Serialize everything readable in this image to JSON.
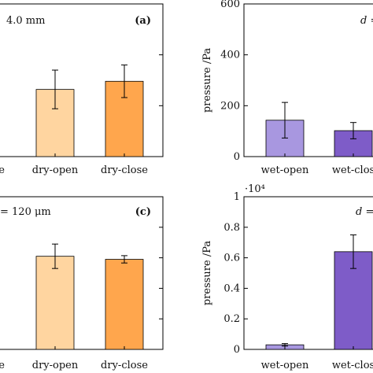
{
  "chart_data": [
    {
      "type": "bar",
      "panel": "top-left",
      "panel_label": "(a)",
      "annotation": "4.0 mm",
      "ylabel": "",
      "categories": [
        "…e",
        "dry-open",
        "dry-close"
      ],
      "values": [
        null,
        66,
        74
      ],
      "errors": [
        null,
        19,
        16
      ],
      "ylim": [
        0,
        150
      ],
      "yticks": [
        0,
        50,
        100,
        150
      ],
      "ytick_labels": [],
      "colors": [
        "#ffd5a0",
        "#ffd5a0",
        "#ffa64d"
      ]
    },
    {
      "type": "bar",
      "panel": "top-right",
      "panel_label": "",
      "annotation": "d =",
      "ylabel": "pressure /Pa",
      "categories": [
        "wet-open",
        "wet-clos…"
      ],
      "values": [
        143,
        102
      ],
      "errors": [
        70,
        32
      ],
      "ylim": [
        0,
        600
      ],
      "yticks": [
        0,
        200,
        400,
        600
      ],
      "ytick_labels": [
        "0",
        "200",
        "400",
        "600"
      ],
      "colors": [
        "#a897e0",
        "#7e5cc8"
      ]
    },
    {
      "type": "bar",
      "panel": "bottom-left",
      "panel_label": "(c)",
      "annotation": "= 120 μm",
      "ylabel": "",
      "categories": [
        "…e",
        "dry-open",
        "dry-close"
      ],
      "values": [
        null,
        3.05,
        2.95
      ],
      "errors": [
        null,
        0.4,
        0.12
      ],
      "ylim": [
        0,
        5
      ],
      "yticks": [
        0,
        1,
        2,
        3,
        4,
        5
      ],
      "ytick_labels": [],
      "colors": [
        "#ffd5a0",
        "#ffd5a0",
        "#ffa64d"
      ]
    },
    {
      "type": "bar",
      "panel": "bottom-right",
      "panel_label": "",
      "annotation": "d =",
      "ylabel": "pressure /Pa",
      "scale_label": "·10⁴",
      "categories": [
        "wet-open",
        "wet-clos…"
      ],
      "values": [
        0.03,
        0.64
      ],
      "errors": [
        0.008,
        0.11
      ],
      "ylim": [
        0,
        1
      ],
      "yticks": [
        0,
        0.2,
        0.4,
        0.6,
        0.8,
        1
      ],
      "ytick_labels": [
        "0",
        "0.2",
        "0.4",
        "0.6",
        "0.8",
        "1"
      ],
      "colors": [
        "#a897e0",
        "#7e5cc8"
      ]
    }
  ]
}
